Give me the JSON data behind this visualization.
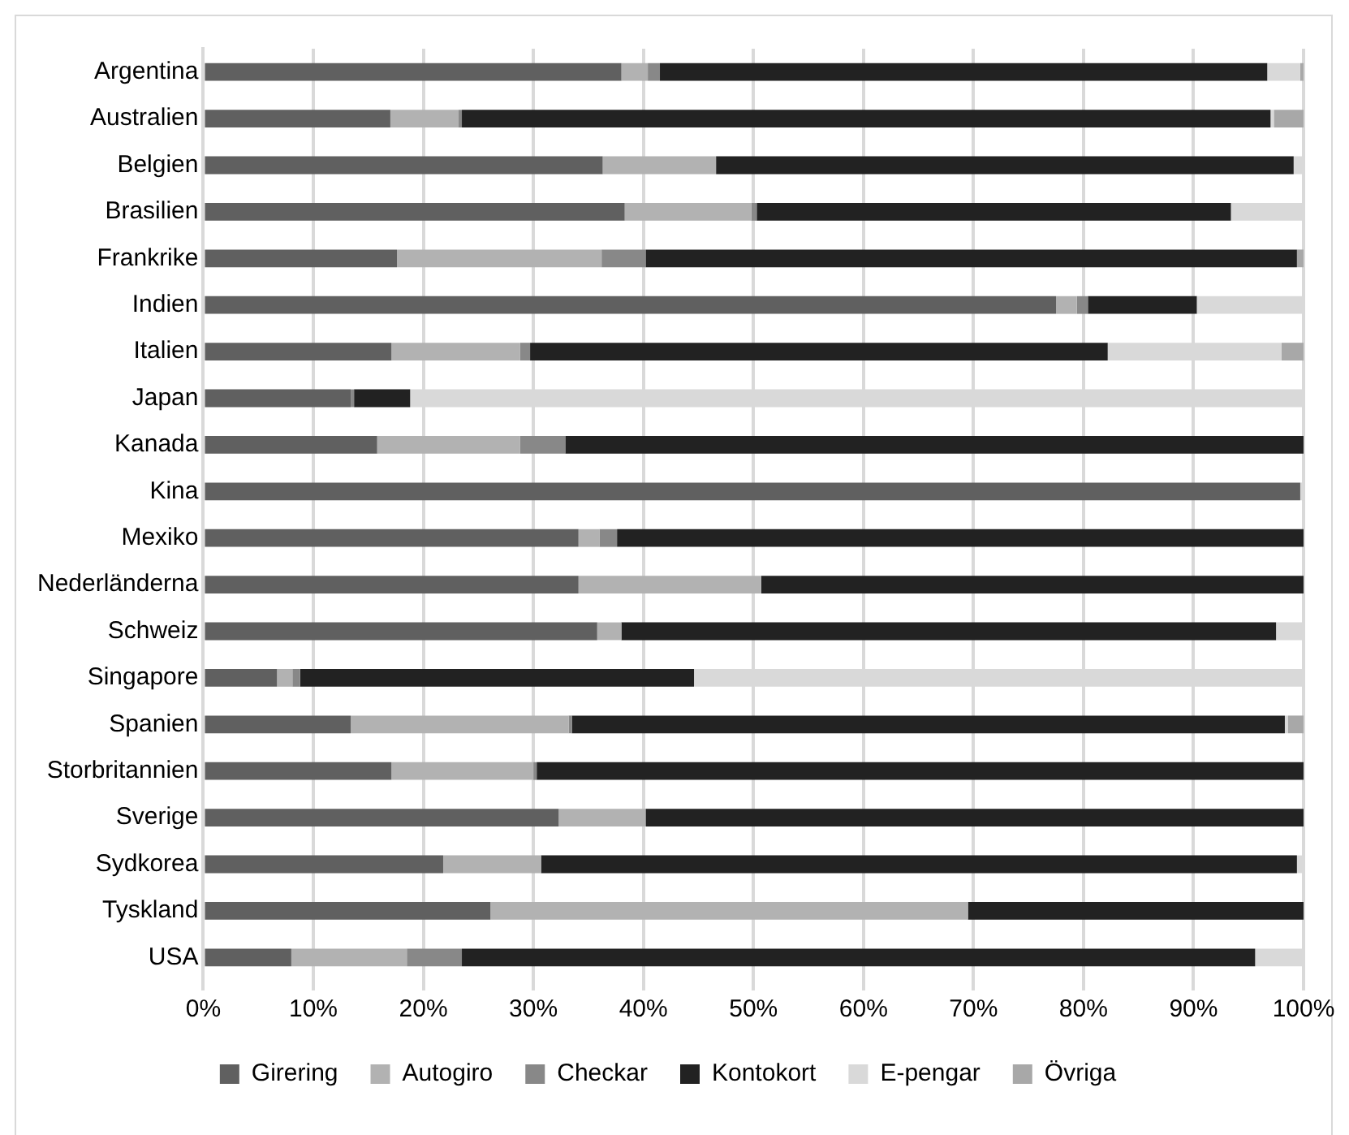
{
  "chart_data": {
    "type": "bar",
    "orientation": "horizontal",
    "stacked": true,
    "grid": "x",
    "legend": "bottom",
    "categories": [
      "Argentina",
      "Australien",
      "Belgien",
      "Brasilien",
      "Frankrike",
      "Indien",
      "Italien",
      "Japan",
      "Kanada",
      "Kina",
      "Mexiko",
      "Nederländerna",
      "Schweiz",
      "Singapore",
      "Spanien",
      "Storbritannien",
      "Sverige",
      "Sydkorea",
      "Tyskland",
      "USA"
    ],
    "series": [
      {
        "name": "Girering",
        "color": "#606060",
        "values": [
          38.0,
          17.0,
          36.3,
          38.3,
          17.6,
          77.5,
          17.1,
          13.4,
          15.8,
          99.7,
          34.1,
          34.1,
          35.8,
          6.7,
          13.4,
          17.1,
          32.3,
          21.8,
          26.1,
          8.0
        ]
      },
      {
        "name": "Autogiro",
        "color": "#b2b2b2",
        "values": [
          2.4,
          6.2,
          10.3,
          11.5,
          18.6,
          1.9,
          11.7,
          0,
          13.0,
          0,
          1.9,
          16.6,
          2.2,
          1.4,
          19.8,
          12.9,
          7.9,
          8.9,
          43.4,
          10.5
        ]
      },
      {
        "name": "Checkar",
        "color": "#888888",
        "values": [
          1.1,
          0.3,
          0,
          0.5,
          4.0,
          1.0,
          0.9,
          0.3,
          4.1,
          0,
          1.6,
          0,
          0,
          0.7,
          0.3,
          0.3,
          0,
          0,
          0,
          5.0
        ]
      },
      {
        "name": "Kontokort",
        "color": "#222222",
        "values": [
          55.2,
          73.5,
          52.5,
          43.1,
          59.2,
          9.9,
          52.5,
          5.1,
          67.1,
          0,
          62.4,
          49.3,
          59.5,
          35.8,
          64.8,
          69.7,
          59.8,
          68.7,
          30.5,
          72.1
        ]
      },
      {
        "name": "E-pengar",
        "color": "#d9d9d9",
        "values": [
          3.0,
          0.3,
          0.9,
          6.6,
          0,
          9.7,
          15.8,
          81.2,
          0,
          0.3,
          0,
          0,
          2.5,
          55.4,
          0.3,
          0,
          0,
          0.6,
          0,
          4.4
        ]
      },
      {
        "name": "Övriga",
        "color": "#a8a8a8",
        "values": [
          0.3,
          2.7,
          0,
          0,
          0.6,
          0,
          2.0,
          0,
          0,
          0,
          0,
          0,
          0,
          0,
          1.4,
          0,
          0,
          0,
          0,
          0
        ]
      }
    ],
    "xlim": [
      0,
      100
    ],
    "xticks": [
      {
        "value": 0,
        "label": "0%"
      },
      {
        "value": 10,
        "label": "10%"
      },
      {
        "value": 20,
        "label": "20%"
      },
      {
        "value": 30,
        "label": "30%"
      },
      {
        "value": 40,
        "label": "40%"
      },
      {
        "value": 50,
        "label": "50%"
      },
      {
        "value": 60,
        "label": "60%"
      },
      {
        "value": 70,
        "label": "70%"
      },
      {
        "value": 80,
        "label": "80%"
      },
      {
        "value": 90,
        "label": "90%"
      },
      {
        "value": 100,
        "label": "100%"
      }
    ]
  }
}
